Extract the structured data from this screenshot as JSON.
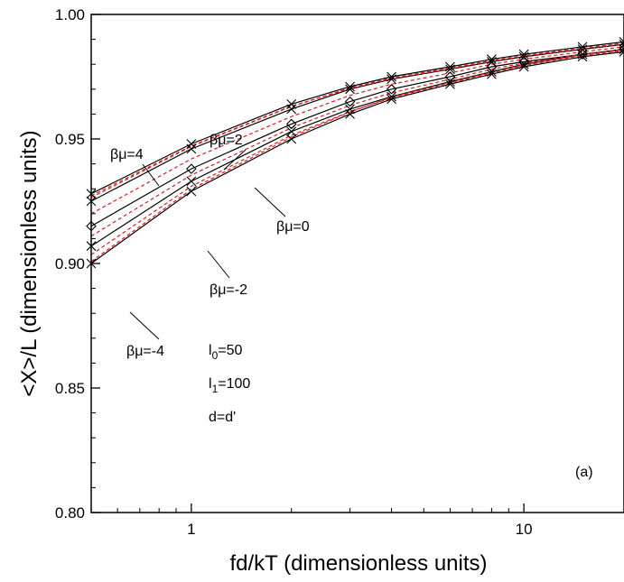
{
  "chart_data": {
    "type": "line",
    "panel_label": "(a)",
    "xlabel": "fd/kT (dimensionless units)",
    "ylabel": "<X>/L (dimensionless units)",
    "x_scale": "log",
    "xlim": [
      0.5,
      20
    ],
    "ylim": [
      0.8,
      1.0
    ],
    "x_ticks": [
      {
        "value": 1,
        "label": "1"
      },
      {
        "value": 10,
        "label": "10"
      }
    ],
    "y_ticks": [
      {
        "value": 0.8,
        "label": "0.80"
      },
      {
        "value": 0.85,
        "label": "0.85"
      },
      {
        "value": 0.9,
        "label": "0.90"
      },
      {
        "value": 0.95,
        "label": "0.95"
      },
      {
        "value": 1.0,
        "label": "1.00"
      }
    ],
    "grid": false,
    "x": [
      0.5,
      1,
      2,
      3,
      4,
      6,
      8,
      10,
      15,
      20
    ],
    "series": [
      {
        "name": "βμ=4",
        "values": [
          0.928,
          0.948,
          0.964,
          0.971,
          0.975,
          0.979,
          0.982,
          0.984,
          0.987,
          0.989
        ],
        "color": "#000000"
      },
      {
        "name": "βμ=2",
        "values": [
          0.925,
          0.946,
          0.962,
          0.97,
          0.974,
          0.978,
          0.981,
          0.983,
          0.986,
          0.988
        ],
        "color": "#000000"
      },
      {
        "name": "βμ=0",
        "values": [
          0.915,
          0.938,
          0.956,
          0.965,
          0.97,
          0.975,
          0.979,
          0.981,
          0.984,
          0.986
        ],
        "color": "#000000"
      },
      {
        "name": "βμ=-2",
        "values": [
          0.907,
          0.933,
          0.953,
          0.962,
          0.967,
          0.973,
          0.977,
          0.98,
          0.984,
          0.986
        ],
        "color": "#000000"
      },
      {
        "name": "βμ=-4",
        "values": [
          0.9,
          0.929,
          0.95,
          0.96,
          0.966,
          0.972,
          0.976,
          0.979,
          0.983,
          0.985
        ],
        "color": "#000000"
      }
    ],
    "dashed_series_color": "#d62020",
    "markers": {
      "x_positions": [
        0.5,
        1,
        2,
        3,
        4,
        6,
        8,
        10,
        15,
        20
      ],
      "symbol": "cross"
    },
    "annotations": [
      {
        "text": "βμ=4"
      },
      {
        "text": "βμ=2"
      },
      {
        "text": "βμ=0"
      },
      {
        "text": "βμ=-2"
      },
      {
        "text": "βμ=-4"
      }
    ],
    "parameters": [
      {
        "text": "l",
        "sub": "0",
        "rest": "=50"
      },
      {
        "text": "l",
        "sub": "1",
        "rest": "=100"
      },
      {
        "text": "d=d'",
        "sub": "",
        "rest": ""
      }
    ]
  }
}
